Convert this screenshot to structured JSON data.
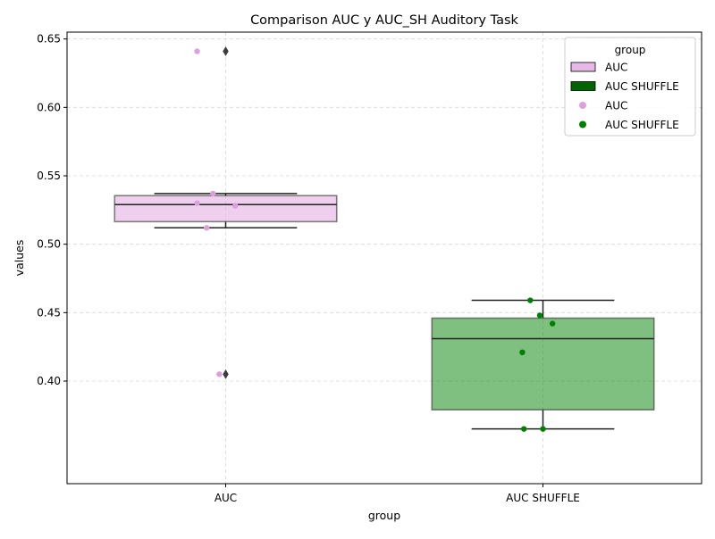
{
  "chart_data": {
    "type": "box",
    "title": "Comparison AUC y AUC_SH Auditory Task",
    "xlabel": "group",
    "ylabel": "values",
    "ylim": [
      0.325,
      0.655
    ],
    "yticks": [
      0.4,
      0.45,
      0.5,
      0.55,
      0.6,
      0.65
    ],
    "ytick_labels": [
      "0.40",
      "0.45",
      "0.50",
      "0.55",
      "0.60",
      "0.65"
    ],
    "grid": true,
    "categories": [
      "AUC",
      "AUC SHUFFLE"
    ],
    "boxes": [
      {
        "name": "AUC",
        "color": "#dda0dd",
        "q1": 0.5165,
        "median": 0.529,
        "q3": 0.5355,
        "whisker_low": 0.512,
        "whisker_high": 0.537,
        "outliers": [
          0.641,
          0.405
        ],
        "points": [
          {
            "dx": -0.18,
            "y": 0.641
          },
          {
            "dx": -0.08,
            "y": 0.537
          },
          {
            "dx": -0.18,
            "y": 0.53
          },
          {
            "dx": 0.06,
            "y": 0.528
          },
          {
            "dx": -0.12,
            "y": 0.512
          },
          {
            "dx": -0.04,
            "y": 0.405
          }
        ]
      },
      {
        "name": "AUC SHUFFLE",
        "color": "#008000",
        "q1": 0.379,
        "median": 0.431,
        "q3": 0.446,
        "whisker_low": 0.365,
        "whisker_high": 0.459,
        "outliers": [],
        "points": [
          {
            "dx": -0.08,
            "y": 0.459
          },
          {
            "dx": -0.02,
            "y": 0.448
          },
          {
            "dx": 0.06,
            "y": 0.442
          },
          {
            "dx": -0.13,
            "y": 0.421
          },
          {
            "dx": -0.12,
            "y": 0.365
          },
          {
            "dx": 0.0,
            "y": 0.365
          }
        ]
      }
    ],
    "legend": {
      "title": "group",
      "placement": "upper right",
      "entries": [
        {
          "label": "AUC",
          "kind": "patch",
          "color": "#dda0dd"
        },
        {
          "label": "AUC SHUFFLE",
          "kind": "patch",
          "color": "#006400"
        },
        {
          "label": "AUC",
          "kind": "marker",
          "color": "#dda0dd"
        },
        {
          "label": "AUC SHUFFLE",
          "kind": "marker",
          "color": "#008000"
        }
      ]
    }
  }
}
